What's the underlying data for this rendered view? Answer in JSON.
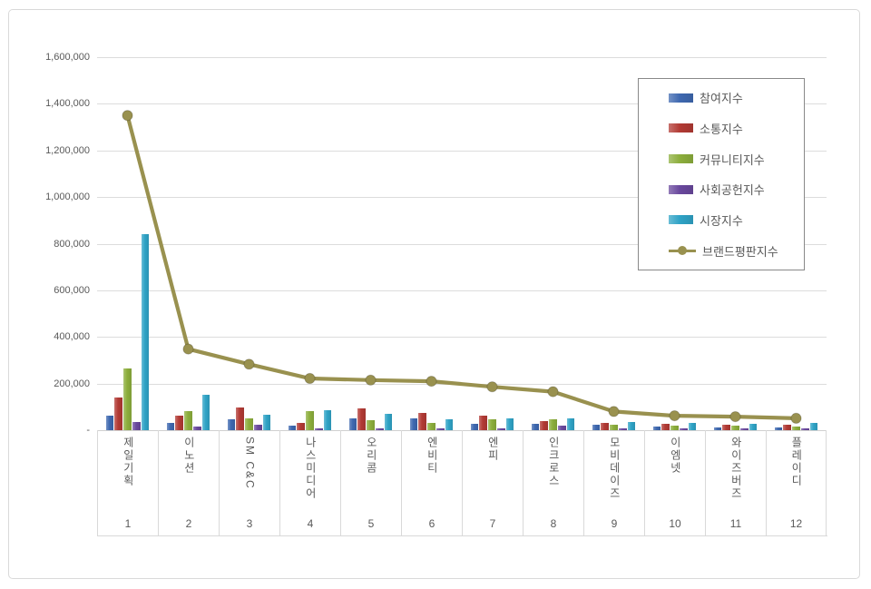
{
  "chart_data": {
    "type": "bar",
    "subtype": "grouped-bars-with-line-overlay",
    "title": "",
    "categories": [
      "제일기획",
      "이노션",
      "SM C&C",
      "나스미디어",
      "오리콤",
      "엔비티",
      "엔피",
      "인크로스",
      "모비데이즈",
      "이엠넷",
      "와이즈버즈",
      "플레이디"
    ],
    "category_ranks": [
      "1",
      "2",
      "3",
      "4",
      "5",
      "6",
      "7",
      "8",
      "9",
      "10",
      "11",
      "12"
    ],
    "series": [
      {
        "name": "참여지수",
        "type": "bar",
        "color": "#3e68b0",
        "values": [
          63000,
          32000,
          48000,
          20000,
          50000,
          52000,
          28000,
          28000,
          22000,
          16000,
          12000,
          10000
        ]
      },
      {
        "name": "소통지수",
        "type": "bar",
        "color": "#b23a34",
        "values": [
          139000,
          61000,
          97000,
          33000,
          92000,
          74000,
          64000,
          38000,
          32000,
          26000,
          25000,
          22000
        ]
      },
      {
        "name": "커뮤니티지수",
        "type": "bar",
        "color": "#8cae3c",
        "values": [
          264000,
          80000,
          52000,
          80000,
          44000,
          31000,
          48000,
          48000,
          22000,
          19000,
          19000,
          14000
        ]
      },
      {
        "name": "사회공헌지수",
        "type": "bar",
        "color": "#69489d",
        "values": [
          35000,
          16000,
          25000,
          8000,
          7000,
          7000,
          4000,
          18000,
          4000,
          7000,
          9000,
          7000
        ]
      },
      {
        "name": "시장지수",
        "type": "bar",
        "color": "#2fa3c6",
        "values": [
          840000,
          152000,
          66000,
          87000,
          70000,
          48000,
          52000,
          52000,
          36000,
          31000,
          28000,
          31000
        ]
      },
      {
        "name": "브랜드평판지수",
        "type": "line",
        "color": "#99914f",
        "values": [
          1350000,
          348000,
          283000,
          222000,
          215000,
          210000,
          186000,
          165000,
          80000,
          62000,
          58000,
          51000
        ]
      }
    ],
    "xlabel": "",
    "ylabel": "",
    "ylim": [
      0,
      1600000
    ],
    "y_step": 200000,
    "y_zero_label": "-",
    "grid": true,
    "legend_position": "top-right"
  },
  "colors": {
    "grid": "#dcdcdc",
    "axis_text": "#595959",
    "frame_border": "#d9d9d9",
    "legend_border": "#898989",
    "background": "#ffffff"
  }
}
